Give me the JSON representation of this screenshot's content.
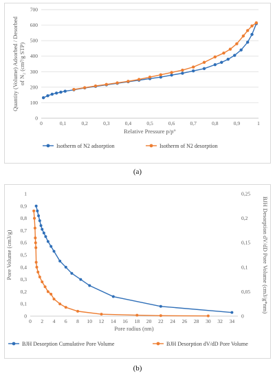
{
  "captions": {
    "a": "(a)",
    "b": "(b)"
  },
  "colors": {
    "blue": "#2f6fb8",
    "orange": "#ed7d31",
    "grid": "#d9d9d9",
    "axis": "#bfbfbf"
  },
  "chart_data": [
    {
      "type": "line",
      "title": "",
      "xlabel": "Relative Pressure p/p°",
      "ylabel": "Quantity (Volume) Adsorbed / Desorbed of N₂ (cm³/g STP)",
      "xlim": [
        0,
        1
      ],
      "ylim": [
        0,
        700
      ],
      "xticks": [
        0,
        0.1,
        0.2,
        0.3,
        0.4,
        0.5,
        0.6,
        0.7,
        0.8,
        0.9,
        1
      ],
      "xtick_labels": [
        "0",
        "0,1",
        "0,2",
        "0,3",
        "0,4",
        "0,5",
        "0,6",
        "0,7",
        "0,8",
        "0,9",
        "1"
      ],
      "yticks": [
        0,
        100,
        200,
        300,
        400,
        500,
        600,
        700
      ],
      "grid": "horizontal",
      "legend": "bottom",
      "series": [
        {
          "name": "Isotherm of N2 adsorption",
          "color": "#2f6fb8",
          "x": [
            0.01,
            0.03,
            0.05,
            0.07,
            0.09,
            0.11,
            0.15,
            0.2,
            0.25,
            0.3,
            0.35,
            0.4,
            0.45,
            0.5,
            0.55,
            0.6,
            0.65,
            0.7,
            0.75,
            0.8,
            0.83,
            0.86,
            0.89,
            0.92,
            0.95,
            0.97,
            0.99
          ],
          "y": [
            132,
            145,
            155,
            162,
            168,
            174,
            183,
            195,
            205,
            215,
            225,
            235,
            245,
            255,
            265,
            278,
            290,
            305,
            320,
            345,
            360,
            380,
            405,
            440,
            490,
            540,
            610
          ]
        },
        {
          "name": "Isotherm of N2 desorption",
          "color": "#ed7d31",
          "x": [
            0.99,
            0.97,
            0.95,
            0.93,
            0.9,
            0.87,
            0.84,
            0.8,
            0.75,
            0.7,
            0.65,
            0.6,
            0.55,
            0.5,
            0.45,
            0.4,
            0.35,
            0.3,
            0.25,
            0.2,
            0.15
          ],
          "y": [
            615,
            595,
            565,
            530,
            480,
            445,
            420,
            395,
            360,
            330,
            310,
            295,
            280,
            265,
            250,
            238,
            228,
            218,
            208,
            197,
            185
          ]
        }
      ]
    },
    {
      "type": "line",
      "title": "",
      "xlabel": "Pore radius (nm)",
      "ylabel": "Pore Volume (cm3/g)",
      "ylabel_right": "BJH Desorption dV/dD Pore Volume (cm3/g*nm)",
      "xlim": [
        0,
        35
      ],
      "ylim": [
        0,
        1
      ],
      "ylim_right": [
        0,
        0.25
      ],
      "xticks": [
        0,
        2,
        4,
        6,
        8,
        10,
        12,
        14,
        16,
        18,
        20,
        22,
        24,
        26,
        28,
        30,
        32,
        34
      ],
      "yticks": [
        0,
        0.1,
        0.2,
        0.3,
        0.4,
        0.5,
        0.6,
        0.7,
        0.8,
        0.9,
        1
      ],
      "ytick_labels": [
        "0",
        "0,1",
        "0,2",
        "0,3",
        "0,4",
        "0,5",
        "0,6",
        "0,7",
        "0,8",
        "0,9",
        "1"
      ],
      "yticks_right": [
        0,
        0.05,
        0.1,
        0.15,
        0.2,
        0.25
      ],
      "ytick_labels_right": [
        "0",
        "0,05",
        "0,1",
        "0,15",
        "0,2",
        "0,25"
      ],
      "grid": "none",
      "legend": "bottom",
      "series": [
        {
          "name": "BJH Desorption Cumulative Pore Volume",
          "color": "#2f6fb8",
          "axis": "left",
          "x": [
            1.0,
            1.2,
            1.4,
            1.6,
            1.8,
            2.0,
            2.3,
            2.6,
            3.0,
            3.5,
            4.0,
            5.0,
            6.0,
            7.0,
            8.5,
            10.0,
            14.0,
            22.0,
            34.0
          ],
          "y": [
            0.9,
            0.86,
            0.82,
            0.78,
            0.74,
            0.71,
            0.68,
            0.65,
            0.61,
            0.57,
            0.53,
            0.45,
            0.4,
            0.35,
            0.3,
            0.25,
            0.16,
            0.08,
            0.03
          ]
        },
        {
          "name": "BJH Desorption dV/dD Pore Volume",
          "color": "#ed7d31",
          "axis": "right",
          "x": [
            0.6,
            0.7,
            0.8,
            0.85,
            0.9,
            0.95,
            1.0,
            1.1,
            1.3,
            1.6,
            2.0,
            2.5,
            3.0,
            3.5,
            4.0,
            5.0,
            6.0,
            8.0,
            12.0,
            18.0,
            22.0,
            30.0
          ],
          "y": [
            0.215,
            0.2,
            0.18,
            0.16,
            0.15,
            0.14,
            0.11,
            0.1,
            0.09,
            0.08,
            0.07,
            0.06,
            0.05,
            0.045,
            0.035,
            0.025,
            0.018,
            0.01,
            0.004,
            0.002,
            0.001,
            0.0005
          ]
        }
      ]
    }
  ]
}
